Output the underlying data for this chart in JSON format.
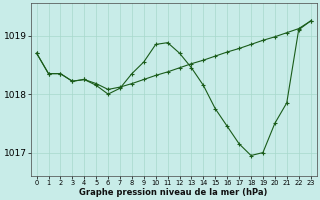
{
  "xlabel": "Graphe pression niveau de la mer (hPa)",
  "bg_color": "#c8ece8",
  "grid_color": "#a8d8cc",
  "line_color": "#1a5c1a",
  "marker": "+",
  "ylim": [
    1016.6,
    1019.55
  ],
  "yticks": [
    1017,
    1018,
    1019
  ],
  "xlim": [
    -0.5,
    23.5
  ],
  "x_s1": [
    0,
    1,
    2,
    3,
    4,
    5,
    6,
    7,
    8,
    9,
    10,
    11,
    12,
    13,
    14,
    15,
    16,
    17,
    18,
    19,
    20,
    21,
    22,
    23
  ],
  "y_s1": [
    1018.7,
    1018.35,
    1018.35,
    1018.22,
    1018.25,
    1018.18,
    1018.08,
    1018.12,
    1018.18,
    1018.25,
    1018.32,
    1018.38,
    1018.45,
    1018.52,
    1018.58,
    1018.65,
    1018.72,
    1018.78,
    1018.85,
    1018.92,
    1018.98,
    1019.05,
    1019.12,
    1019.25
  ],
  "x_s2": [
    0,
    1,
    2,
    3,
    4,
    5,
    6,
    7,
    8,
    9,
    10,
    11,
    12,
    13,
    14,
    15,
    16,
    17,
    18,
    19,
    20,
    21,
    22,
    23
  ],
  "y_s2": [
    1018.7,
    1018.35,
    1018.35,
    1018.22,
    1018.25,
    1018.15,
    1018.0,
    1018.1,
    1018.35,
    1018.55,
    1018.85,
    1018.88,
    1018.7,
    1018.45,
    1018.15,
    1017.75,
    1017.45,
    1017.15,
    1016.95,
    1017.0,
    1017.5,
    1017.85,
    1019.1,
    1019.25
  ]
}
